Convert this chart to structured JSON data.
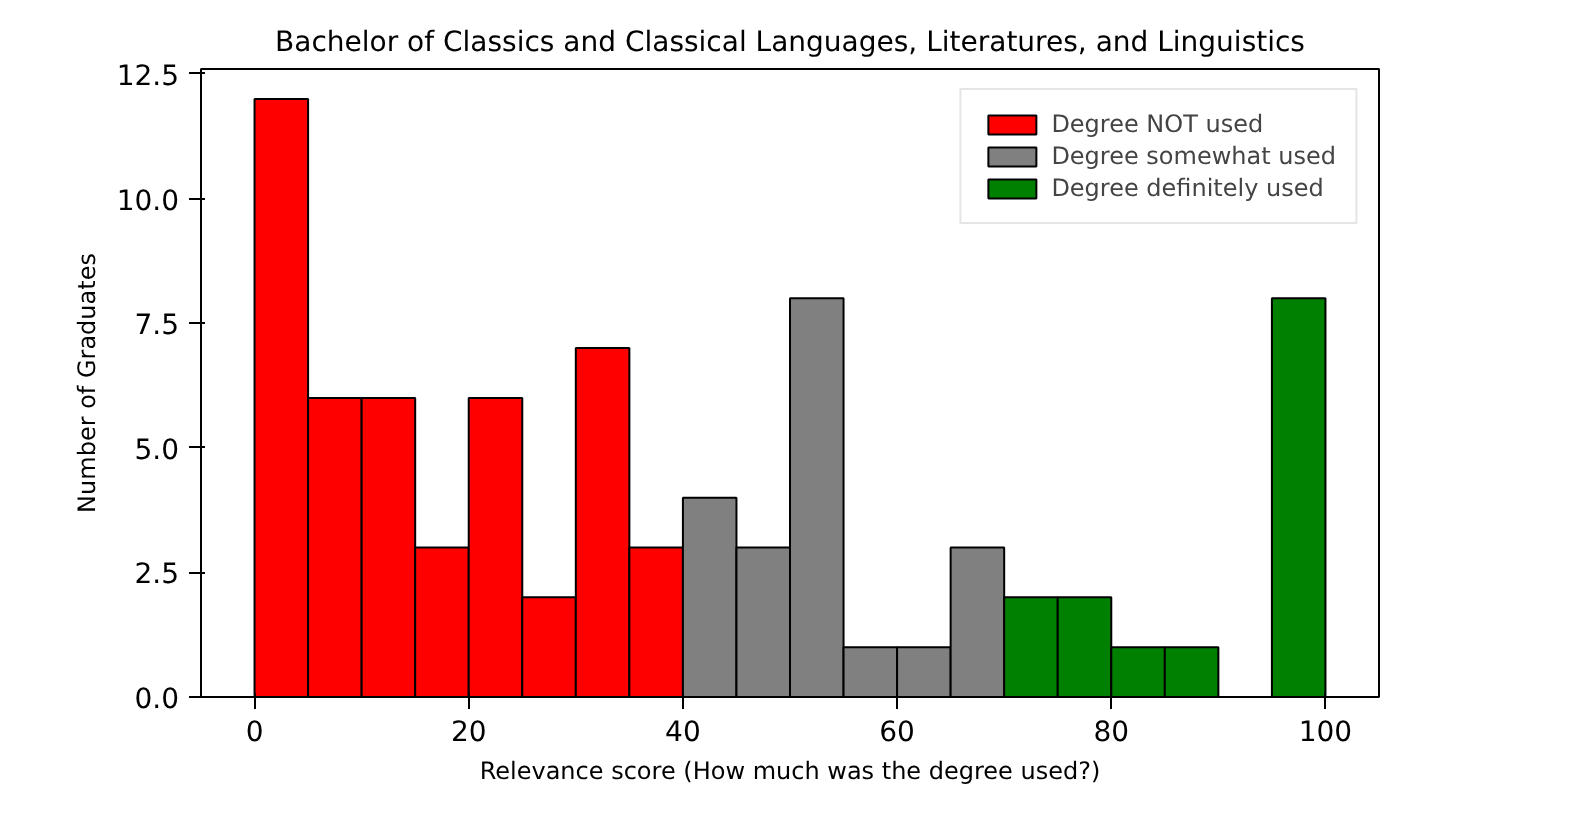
{
  "chart_data": {
    "type": "histogram",
    "title": "Bachelor of Classics and Classical Languages, Literatures, and Linguistics",
    "xlabel": "Relevance score (How much was the degree used?)",
    "ylabel": "Number of Graduates",
    "bins": [
      0,
      5,
      10,
      15,
      20,
      25,
      30,
      35,
      40,
      45,
      50,
      55,
      60,
      65,
      70,
      75,
      80,
      85,
      90,
      95,
      100
    ],
    "series": [
      {
        "name": "Degree NOT used",
        "color": "#ff0000",
        "values": [
          12,
          6,
          6,
          3,
          6,
          2,
          7,
          3,
          null,
          null,
          null,
          null,
          null,
          null,
          null,
          null,
          null,
          null,
          null,
          null
        ]
      },
      {
        "name": "Degree somewhat used",
        "color": "#808080",
        "values": [
          null,
          null,
          null,
          null,
          null,
          null,
          null,
          null,
          4,
          3,
          8,
          1,
          1,
          3,
          null,
          null,
          null,
          null,
          null,
          null
        ]
      },
      {
        "name": "Degree definitely used",
        "color": "#008000",
        "values": [
          null,
          null,
          null,
          null,
          null,
          null,
          null,
          null,
          null,
          null,
          null,
          null,
          null,
          null,
          2,
          2,
          1,
          1,
          0,
          8
        ]
      }
    ],
    "xlim": [
      -5,
      105
    ],
    "xticks": [
      0,
      20,
      40,
      60,
      80,
      100
    ],
    "ylim": [
      0,
      12.6
    ],
    "yticks": [
      {
        "value": 0,
        "label": "0.0"
      },
      {
        "value": 2.5,
        "label": "2.5"
      },
      {
        "value": 5,
        "label": "5.0"
      },
      {
        "value": 7.5,
        "label": "7.5"
      },
      {
        "value": 10,
        "label": "10.0"
      },
      {
        "value": 12.5,
        "label": "12.5"
      }
    ],
    "legend": "top right"
  }
}
